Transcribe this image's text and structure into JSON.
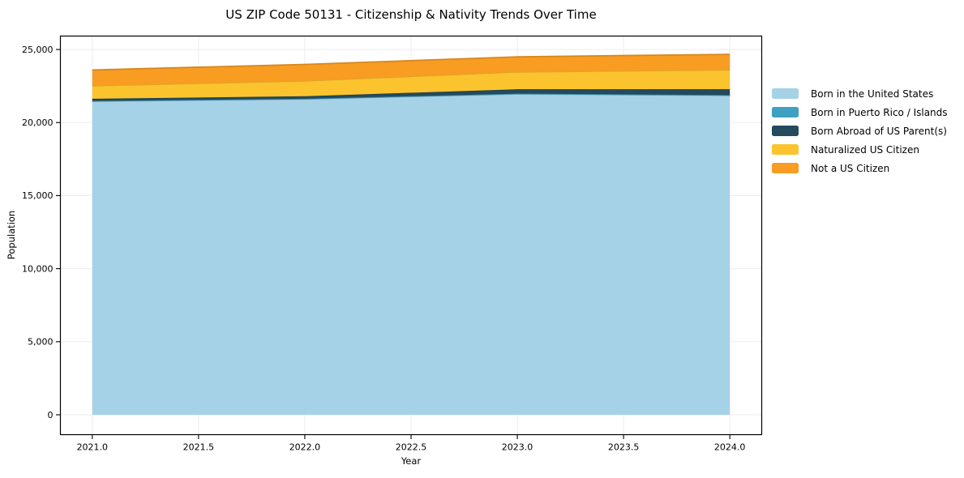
{
  "title": "US ZIP Code 50131 - Citizenship & Nativity Trends Over Time",
  "chart_data": {
    "type": "area",
    "stacked": true,
    "title": "US ZIP Code 50131 - Citizenship & Nativity Trends Over Time",
    "xlabel": "Year",
    "ylabel": "Population",
    "x": [
      2021,
      2022,
      2023,
      2024
    ],
    "series": [
      {
        "name": "Born in the United States",
        "color": "#a6d2e7",
        "values": [
          21450,
          21600,
          21950,
          21850
        ]
      },
      {
        "name": "Born in Puerto Rico / Islands",
        "color": "#3fa0c1",
        "values": [
          30,
          30,
          30,
          30
        ]
      },
      {
        "name": "Born Abroad of US Parent(s)",
        "color": "#234a5d",
        "values": [
          150,
          170,
          300,
          400
        ]
      },
      {
        "name": "Naturalized US Citizen",
        "color": "#fbc42e",
        "values": [
          880,
          1050,
          1180,
          1320
        ]
      },
      {
        "name": "Not a US Citizen",
        "color": "#f89c22",
        "values": [
          1090,
          1130,
          1040,
          1070
        ]
      }
    ],
    "totals": [
      23600,
      23980,
      24500,
      24670
    ],
    "x_ticks": {
      "values": [
        2021,
        2021.5,
        2022,
        2022.5,
        2023,
        2023.5,
        2024
      ],
      "labels": [
        "2021.0",
        "2021.5",
        "2022.0",
        "2022.5",
        "2023.0",
        "2023.5",
        "2024.0"
      ]
    },
    "y_ticks": {
      "values": [
        0,
        5000,
        10000,
        15000,
        20000,
        25000
      ],
      "labels": [
        "0",
        "5,000",
        "10,000",
        "15,000",
        "20,000",
        "25,000"
      ]
    },
    "xlim": [
      2020.85,
      2024.15
    ],
    "ylim": [
      -1360,
      25920
    ],
    "grid": true,
    "grid_color": "#ededed",
    "frame_color": "#000000",
    "legend_position": "right"
  }
}
